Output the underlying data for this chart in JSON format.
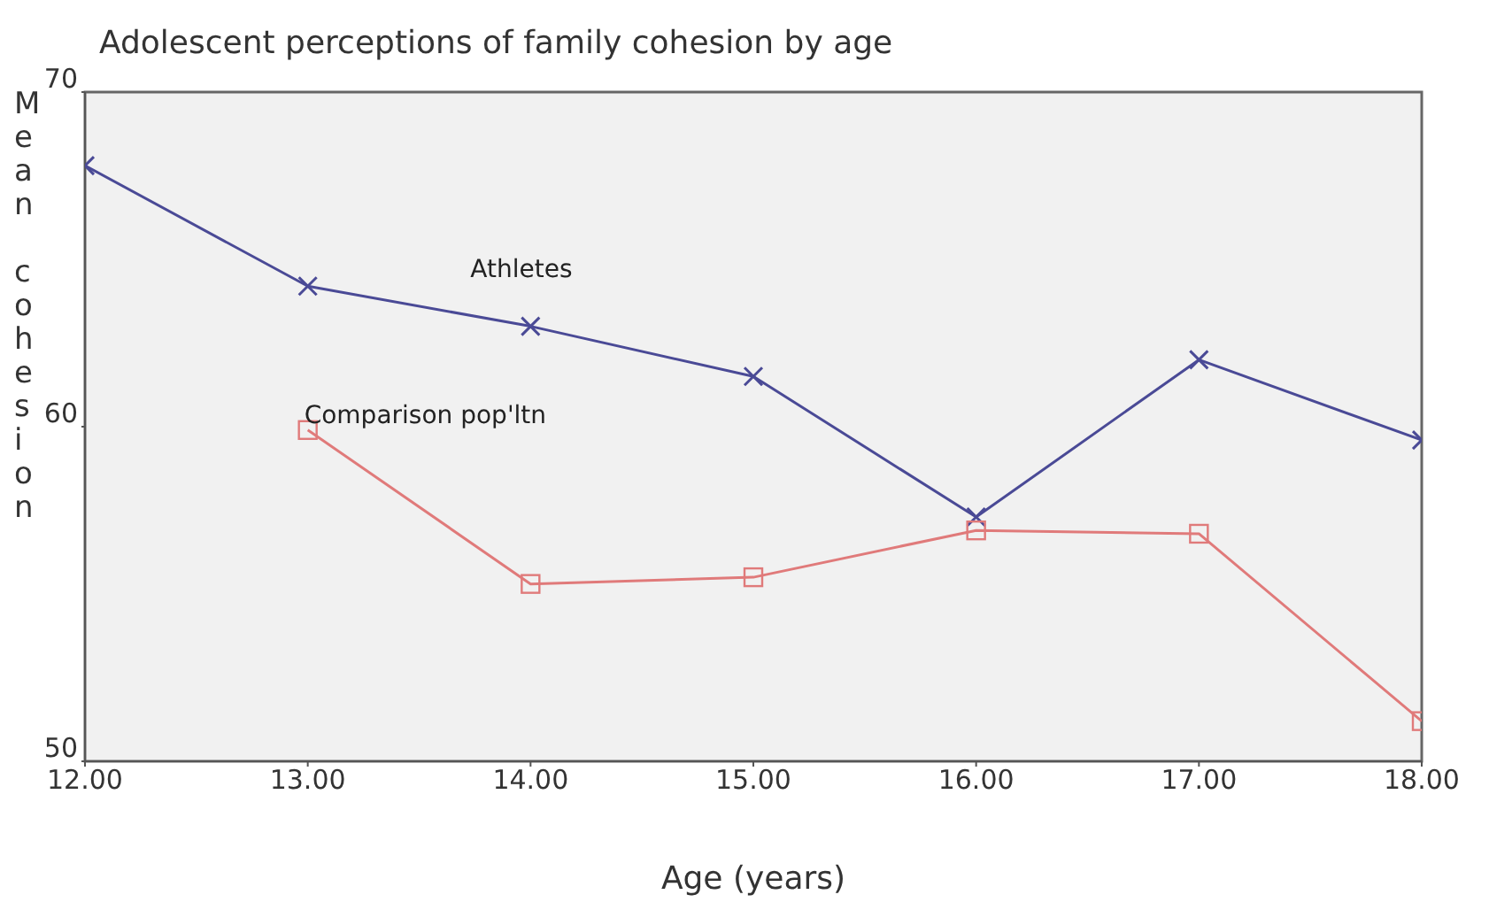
{
  "chart_data": {
    "type": "line",
    "title": "Adolescent perceptions of family cohesion by age",
    "xlabel": "Age (years)",
    "ylabel": "Mean cohesion",
    "x": [
      12,
      13,
      14,
      15,
      16,
      17,
      18
    ],
    "series": [
      {
        "name": "Athletes",
        "color": "#4a4a96",
        "marker": "cross",
        "values": [
          67.8,
          64.2,
          63.0,
          61.5,
          57.3,
          62.0,
          59.6
        ]
      },
      {
        "name": "Comparison pop'ltn",
        "color": "#e07a7a",
        "marker": "square",
        "values": [
          null,
          59.9,
          55.3,
          55.5,
          56.9,
          56.8,
          51.2
        ]
      }
    ],
    "xlim": [
      12,
      18
    ],
    "xticks": [
      {
        "value": 12,
        "label": "12.00"
      },
      {
        "value": 13,
        "label": "13.00"
      },
      {
        "value": 14,
        "label": "14.00"
      },
      {
        "value": 15,
        "label": "15.00"
      },
      {
        "value": 16,
        "label": "16.00"
      },
      {
        "value": 17,
        "label": "17.00"
      },
      {
        "value": 18,
        "label": "18.00"
      }
    ],
    "ylim": [
      50,
      70
    ],
    "yticks": [
      50,
      60,
      70
    ]
  }
}
